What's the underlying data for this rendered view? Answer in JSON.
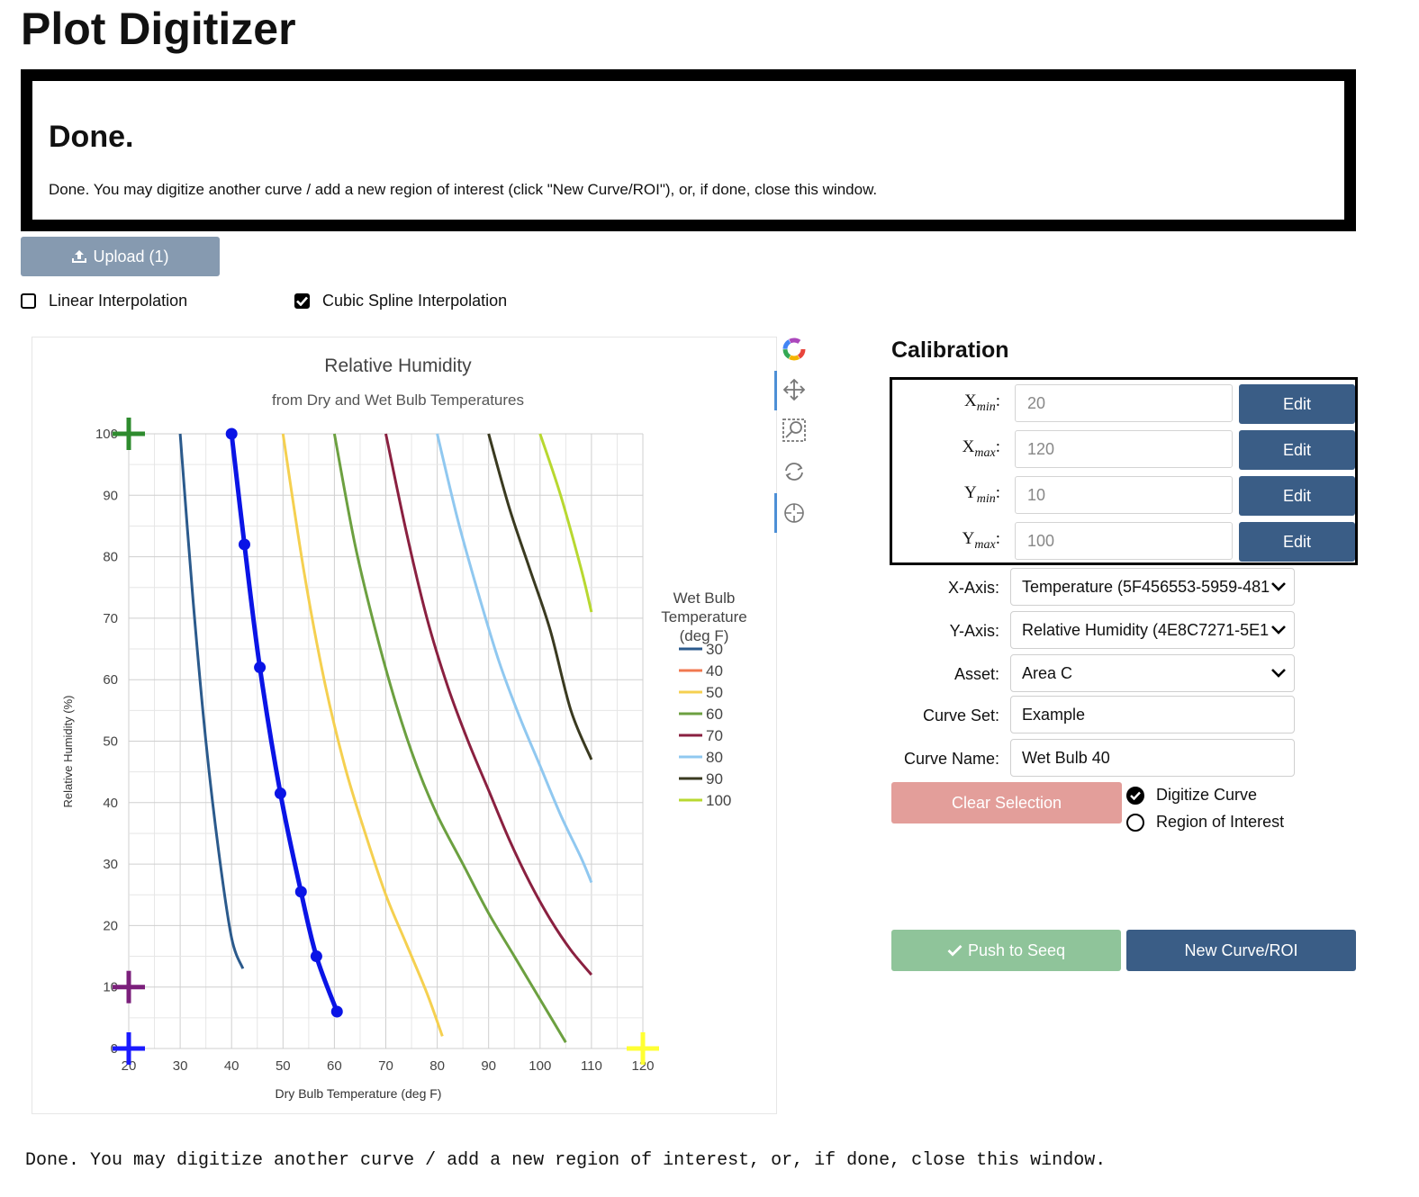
{
  "app": {
    "title": "Plot Digitizer"
  },
  "status": {
    "heading": "Done.",
    "message": "Done. You may digitize another curve / add a new region of interest (click \"New Curve/ROI\"), or, if done, close this window."
  },
  "upload": {
    "label": "Upload (1)",
    "icon": "upload-icon"
  },
  "interpolation": {
    "linear": {
      "label": "Linear Interpolation",
      "checked": false
    },
    "cubic": {
      "label": "Cubic Spline Interpolation",
      "checked": true
    }
  },
  "toolbar": {
    "tools": [
      "logo-icon",
      "pan-icon",
      "box-zoom-icon",
      "reset-icon",
      "crosshair-icon"
    ]
  },
  "calibration": {
    "title": "Calibration",
    "rows": [
      {
        "label": "X",
        "sub": "min",
        "value": "20",
        "button": "Edit"
      },
      {
        "label": "X",
        "sub": "max",
        "value": "120",
        "button": "Edit"
      },
      {
        "label": "Y",
        "sub": "min",
        "value": "10",
        "button": "Edit"
      },
      {
        "label": "Y",
        "sub": "max",
        "value": "100",
        "button": "Edit"
      }
    ]
  },
  "form": {
    "x_axis": {
      "label": "X-Axis:",
      "value": "Temperature (5F456553-5959-481"
    },
    "y_axis": {
      "label": "Y-Axis:",
      "value": "Relative Humidity (4E8C7271-5E1"
    },
    "asset": {
      "label": "Asset:",
      "value": "Area C"
    },
    "curve_set": {
      "label": "Curve Set:",
      "value": "Example"
    },
    "curve_name": {
      "label": "Curve Name:",
      "value": "Wet Bulb 40"
    }
  },
  "buttons": {
    "clear": "Clear Selection",
    "push": "Push to Seeq",
    "new_curve": "New Curve/ROI"
  },
  "mode": {
    "digitize": "Digitize Curve",
    "roi": "Region of Interest",
    "selected": "digitize"
  },
  "footer": {
    "text": "Done. You may digitize another curve / add a new region of interest, or, if done, close this window."
  },
  "colors": {
    "digitized": "#0a14e6",
    "calib_x": "#2e8b2e",
    "calib_ymin": "#7b1f7b",
    "calib_origin": "#1a1aff",
    "calib_xmax": "#ffff33"
  },
  "chart_data": {
    "type": "line",
    "title": "Relative Humidity",
    "subtitle": "from Dry and Wet Bulb Temperatures",
    "xlabel": "Dry Bulb Temperature (deg F)",
    "ylabel": "Relative Humidity (%)",
    "xlim": [
      20,
      120
    ],
    "ylim": [
      0,
      100
    ],
    "x_ticks": [
      "20",
      "30",
      "40",
      "50",
      "60",
      "70",
      "80",
      "90",
      "100",
      "110",
      "120"
    ],
    "y_ticks": [
      "0",
      "10",
      "20",
      "30",
      "40",
      "50",
      "60",
      "70",
      "80",
      "90",
      "100"
    ],
    "grid": true,
    "legend": {
      "title": [
        "Wet Bulb",
        "Temperature",
        "(deg F)"
      ],
      "position": "right"
    },
    "series": [
      {
        "name": "30",
        "color": "#2b5a8c",
        "x": [
          30,
          32.5,
          35,
          37.5,
          40,
          42.2
        ],
        "y": [
          100,
          73,
          50,
          32,
          18,
          13
        ]
      },
      {
        "name": "40",
        "color": "#f07850",
        "x": [],
        "y": []
      },
      {
        "name": "50",
        "color": "#f5d050",
        "x": [
          50,
          54,
          58,
          62,
          66,
          70,
          74,
          78,
          81
        ],
        "y": [
          100,
          78,
          60,
          46,
          35,
          25,
          17,
          9,
          2
        ]
      },
      {
        "name": "60",
        "color": "#6ca040",
        "x": [
          60,
          64,
          68,
          72,
          76,
          80,
          85,
          90,
          95,
          100,
          105
        ],
        "y": [
          100,
          82,
          68,
          56,
          46,
          38,
          30,
          22,
          15,
          8,
          1
        ]
      },
      {
        "name": "70",
        "color": "#8a2040",
        "x": [
          70,
          74,
          78,
          82,
          86,
          90,
          94,
          98,
          102,
          106,
          110
        ],
        "y": [
          100,
          84,
          70,
          59,
          50,
          42,
          34,
          27,
          21,
          16,
          12
        ]
      },
      {
        "name": "80",
        "color": "#90c8f0",
        "x": [
          80,
          84,
          88,
          92,
          96,
          100,
          104,
          108,
          110
        ],
        "y": [
          100,
          86,
          74,
          63,
          54,
          46,
          38,
          31,
          27
        ]
      },
      {
        "name": "90",
        "color": "#3a3a20",
        "x": [
          90,
          94,
          98,
          102,
          106,
          110
        ],
        "y": [
          100,
          88,
          78,
          68,
          55,
          47
        ]
      },
      {
        "name": "100",
        "color": "#b8d830",
        "x": [
          100,
          104,
          108,
          110
        ],
        "y": [
          100,
          90,
          78,
          71
        ]
      }
    ],
    "digitized_points": {
      "name": "Wet Bulb 40",
      "x": [
        40,
        42.5,
        45.5,
        49.5,
        53.5,
        56.5,
        60.5
      ],
      "y": [
        100,
        82,
        62,
        41.5,
        25.5,
        15,
        6
      ]
    },
    "calibration_markers": [
      {
        "name": "y-max-marker",
        "x": 20,
        "y": 100,
        "color": "#2e8b2e"
      },
      {
        "name": "y-min-marker",
        "x": 20,
        "y": 10,
        "color": "#7b1f7b"
      },
      {
        "name": "x-min-marker",
        "x": 20,
        "y": 0,
        "color": "#1a1aff"
      },
      {
        "name": "x-max-marker",
        "x": 120,
        "y": 0,
        "color": "#ffff33"
      }
    ]
  }
}
